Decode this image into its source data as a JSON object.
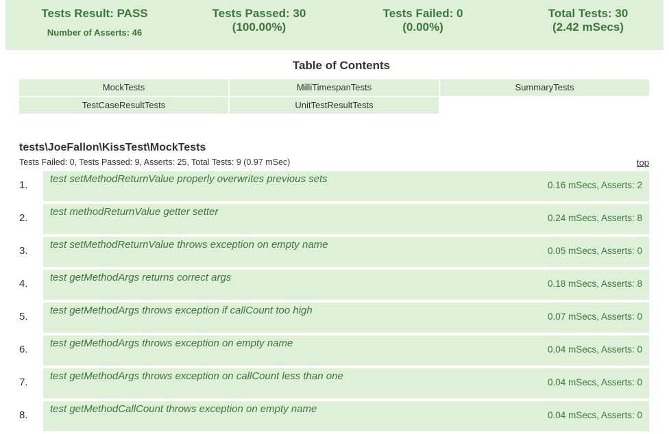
{
  "summary": {
    "result": "Tests Result: PASS",
    "asserts": "Number of Asserts: 46",
    "passed": "Tests Passed: 30",
    "passed_pct": "(100.00%)",
    "failed": "Tests Failed: 0",
    "failed_pct": "(0.00%)",
    "total": "Total Tests: 30",
    "total_time": "(2.42 mSecs)"
  },
  "toc": {
    "title": "Table of Contents",
    "items": [
      "MockTests",
      "MilliTimespanTests",
      "SummaryTests",
      "TestCaseResultTests",
      "UnitTestResultTests"
    ]
  },
  "section": {
    "title": "tests\\JoeFallon\\KissTest\\MockTests",
    "subtitle": "Tests Failed: 0, Tests Passed: 9, Asserts: 25, Total Tests: 9 (0.97 mSec)",
    "top_link": "top",
    "tests": [
      {
        "num": "1.",
        "name": "test setMethodReturnValue properly overwrites previous sets",
        "time": "0.16 mSecs, Asserts: 2"
      },
      {
        "num": "2.",
        "name": "test methodReturnValue getter setter",
        "time": "0.24 mSecs, Asserts: 8"
      },
      {
        "num": "3.",
        "name": "test setMethodReturnValue throws exception on empty name",
        "time": "0.05 mSecs, Asserts: 0"
      },
      {
        "num": "4.",
        "name": "test getMethodArgs returns correct args",
        "time": "0.18 mSecs, Asserts: 8"
      },
      {
        "num": "5.",
        "name": "test getMethodArgs throws exception if callCount too high",
        "time": "0.07 mSecs, Asserts: 0"
      },
      {
        "num": "6.",
        "name": "test getMethodArgs throws exception on empty name",
        "time": "0.04 mSecs, Asserts: 0"
      },
      {
        "num": "7.",
        "name": "test getMethodArgs throws exception on callCount less than one",
        "time": "0.04 mSecs, Asserts: 0"
      },
      {
        "num": "8.",
        "name": "test getMethodCallCount throws exception on empty name",
        "time": "0.04 mSecs, Asserts: 0"
      }
    ]
  },
  "colors": {
    "pass_bg": "#dff0d8",
    "pass_text": "#3c763d"
  }
}
